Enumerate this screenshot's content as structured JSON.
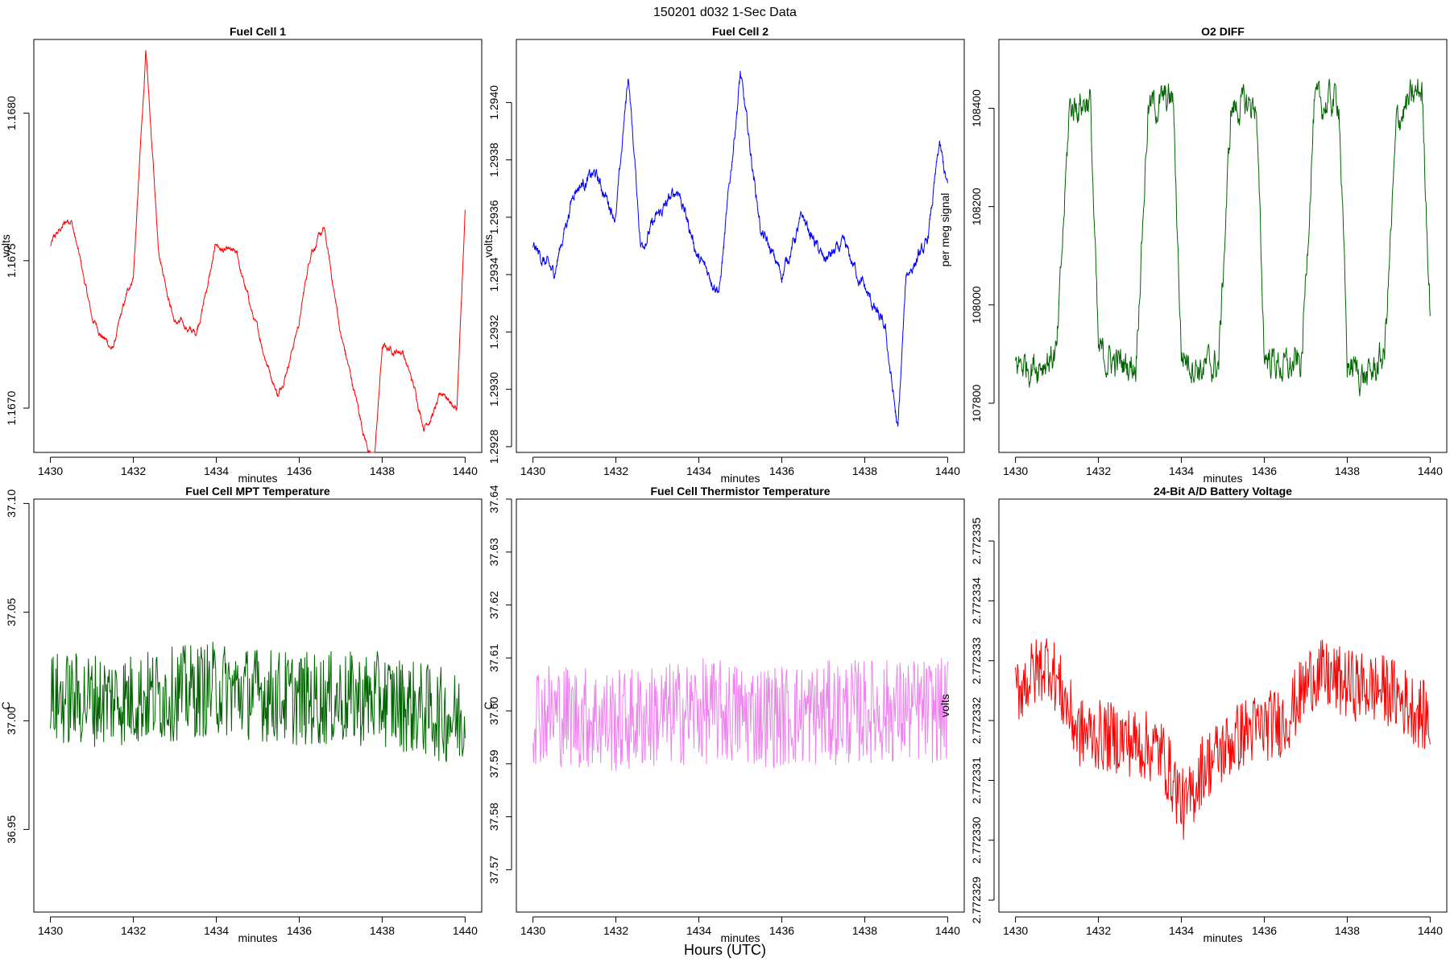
{
  "figure": {
    "title": "150201    d032    1-Sec Data",
    "xlabel": "Hours (UTC)"
  },
  "chart_data": [
    {
      "type": "line",
      "title": "Fuel Cell 1",
      "xlabel": "minutes",
      "ylabel": "volts",
      "color": "#ff0000",
      "xlim": [
        1429.6,
        1440.4
      ],
      "ylim": [
        1.16685,
        1.16825
      ],
      "xticks": [
        1430,
        1432,
        1434,
        1436,
        1438,
        1440
      ],
      "yticks": [
        1.167,
        1.1675,
        1.168
      ],
      "ytick_labels": [
        "1.1670",
        "1.1675",
        "1.1680"
      ],
      "series": [
        {
          "name": "Fuel Cell 1",
          "x": [
            1430,
            1430.5,
            1431,
            1431.5,
            1432,
            1432.3,
            1432.6,
            1433,
            1433.5,
            1434,
            1434.5,
            1435,
            1435.5,
            1436,
            1436.3,
            1436.6,
            1437,
            1437.5,
            1437.8,
            1438,
            1438.5,
            1439,
            1439.5,
            1439.8,
            1440
          ],
          "values": [
            1.16755,
            1.16765,
            1.1673,
            1.1672,
            1.16745,
            1.1682,
            1.16755,
            1.1673,
            1.16725,
            1.16755,
            1.1675,
            1.16725,
            1.16705,
            1.1673,
            1.16755,
            1.1676,
            1.16725,
            1.16695,
            1.1668,
            1.1672,
            1.1672,
            1.16695,
            1.16705,
            1.167,
            1.16765
          ]
        }
      ]
    },
    {
      "type": "line",
      "title": "Fuel Cell 2",
      "xlabel": "minutes",
      "ylabel": "volts",
      "color": "#0000ff",
      "xlim": [
        1429.6,
        1440.4
      ],
      "ylim": [
        1.29278,
        1.29422
      ],
      "xticks": [
        1430,
        1432,
        1434,
        1436,
        1438,
        1440
      ],
      "yticks": [
        1.2928,
        1.293,
        1.2932,
        1.2934,
        1.2936,
        1.2938,
        1.294
      ],
      "ytick_labels": [
        "1.2928",
        "1.2930",
        "1.2932",
        "1.2934",
        "1.2936",
        "1.2938",
        "1.2940"
      ],
      "series": [
        {
          "name": "Fuel Cell 2",
          "x": [
            1430,
            1430.5,
            1431,
            1431.5,
            1432,
            1432.3,
            1432.6,
            1433,
            1433.5,
            1434,
            1434.5,
            1435,
            1435.5,
            1436,
            1436.5,
            1437,
            1437.5,
            1438,
            1438.5,
            1438.8,
            1439,
            1439.5,
            1439.8,
            1440
          ],
          "values": [
            1.2935,
            1.2934,
            1.2937,
            1.29375,
            1.2936,
            1.2941,
            1.2935,
            1.2936,
            1.2937,
            1.29345,
            1.29335,
            1.2941,
            1.29355,
            1.2934,
            1.2936,
            1.29345,
            1.2935,
            1.29335,
            1.2932,
            1.29285,
            1.2934,
            1.2935,
            1.29385,
            1.2937
          ]
        }
      ]
    },
    {
      "type": "line",
      "title": "O2 DIFF",
      "xlabel": "minutes",
      "ylabel": "per meg signal",
      "color": "#006400",
      "xlim": [
        1429.6,
        1440.4
      ],
      "ylim": [
        107700,
        108540
      ],
      "xticks": [
        1430,
        1432,
        1434,
        1436,
        1438,
        1440
      ],
      "yticks": [
        107800,
        108000,
        108200,
        108400
      ],
      "ytick_labels": [
        "107800",
        "108000",
        "108200",
        "108400"
      ],
      "series": [
        {
          "name": "O2 DIFF",
          "x": [
            1430,
            1430.5,
            1431,
            1431.3,
            1431.8,
            1432,
            1432.5,
            1432.9,
            1433.2,
            1433.8,
            1434,
            1434.5,
            1434.9,
            1435.2,
            1435.8,
            1436,
            1436.5,
            1436.9,
            1437.2,
            1437.8,
            1438,
            1438.5,
            1438.9,
            1439.2,
            1439.8,
            1440
          ],
          "values": [
            107880,
            107880,
            107900,
            108400,
            108420,
            107900,
            107880,
            107880,
            108400,
            108420,
            107900,
            107870,
            107880,
            108400,
            108410,
            107900,
            107870,
            107880,
            108400,
            108420,
            107880,
            107850,
            107900,
            108380,
            108440,
            107990
          ]
        }
      ]
    },
    {
      "type": "line",
      "title": "Fuel Cell MPT Temperature",
      "xlabel": "minutes",
      "ylabel": "C",
      "color": "#006400",
      "xlim": [
        1429.6,
        1440.4
      ],
      "ylim": [
        36.912,
        37.102
      ],
      "xticks": [
        1430,
        1432,
        1434,
        1436,
        1438,
        1440
      ],
      "yticks": [
        36.95,
        37.0,
        37.05,
        37.1
      ],
      "ytick_labels": [
        "36.95",
        "37.00",
        "37.05",
        "37.10"
      ],
      "series": [
        {
          "name": "MPT Temperature",
          "x": [
            1430,
            1432,
            1434,
            1436,
            1438,
            1440
          ],
          "values": [
            37.01,
            37.01,
            37.015,
            37.01,
            37.01,
            37.0
          ]
        }
      ]
    },
    {
      "type": "line",
      "title": "Fuel Cell Thermistor Temperature",
      "xlabel": "minutes",
      "ylabel": "C",
      "color": "#ee82ee",
      "xlim": [
        1429.6,
        1440.4
      ],
      "ylim": [
        37.562,
        37.64
      ],
      "xticks": [
        1430,
        1432,
        1434,
        1436,
        1438,
        1440
      ],
      "yticks": [
        37.57,
        37.58,
        37.59,
        37.6,
        37.61,
        37.62,
        37.63,
        37.64
      ],
      "ytick_labels": [
        "37.57",
        "37.58",
        "37.59",
        "37.60",
        "37.61",
        "37.62",
        "37.63",
        "37.64"
      ],
      "series": [
        {
          "name": "Thermistor Temperature",
          "x": [
            1430,
            1432,
            1434,
            1436,
            1438,
            1440
          ],
          "values": [
            37.6,
            37.598,
            37.6,
            37.599,
            37.6,
            37.6
          ]
        }
      ]
    },
    {
      "type": "line",
      "title": "24-Bit A/D Battery Voltage",
      "xlabel": "minutes",
      "ylabel": "volts",
      "color": "#ff0000",
      "xlim": [
        1429.6,
        1440.4
      ],
      "ylim": [
        2.7723288,
        2.7723357
      ],
      "xticks": [
        1430,
        1432,
        1434,
        1436,
        1438,
        1440
      ],
      "yticks": [
        2.772329,
        2.77233,
        2.772331,
        2.772332,
        2.772333,
        2.772334,
        2.772335
      ],
      "ytick_labels": [
        "2.772329",
        "2.772330",
        "2.772331",
        "2.772332",
        "2.772333",
        "2.772334",
        "2.772335"
      ],
      "series": [
        {
          "name": "Battery Voltage",
          "x": [
            1430,
            1430.8,
            1431.5,
            1432.5,
            1433.5,
            1434.1,
            1434.5,
            1435.5,
            1436.5,
            1437.2,
            1438,
            1439,
            1440
          ],
          "values": [
            2.7723325,
            2.772333,
            2.7723318,
            2.7723317,
            2.7723315,
            2.7723305,
            2.7723312,
            2.7723318,
            2.772332,
            2.7723328,
            2.7723326,
            2.7723325,
            2.772332
          ]
        }
      ]
    }
  ]
}
